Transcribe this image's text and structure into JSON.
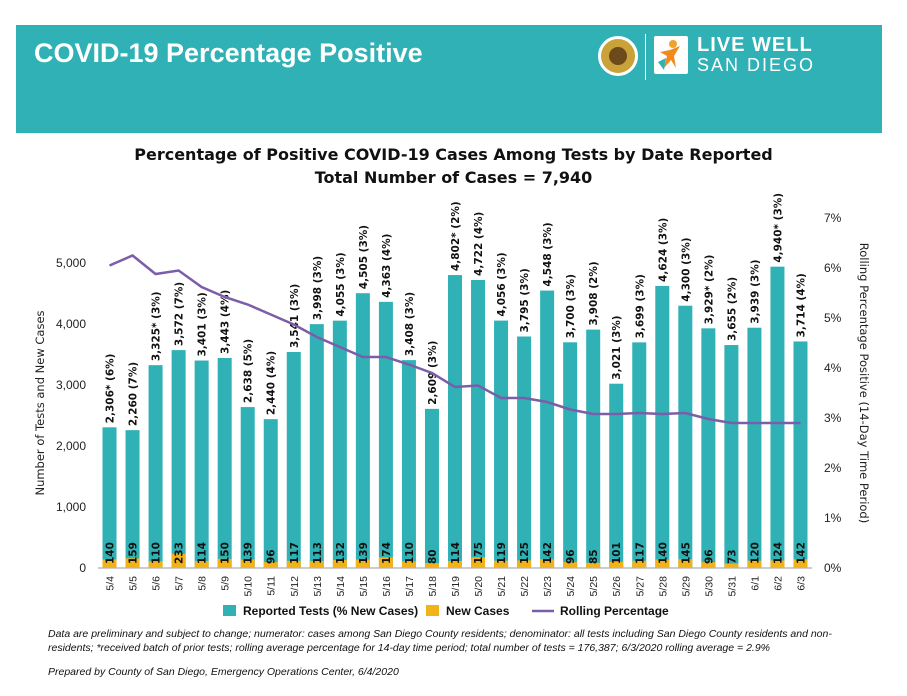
{
  "header": {
    "title": "COVID-19 Percentage Positive",
    "logo_line1": "LIVE WELL",
    "logo_line2": "SAN DIEGO",
    "brand_color": "#2fb1b5"
  },
  "chart_data": {
    "type": "bar",
    "title": "Percentage of Positive COVID-19 Cases Among Tests by Date Reported",
    "subtitle": "Total Number of Cases = 7,940",
    "xlabel": "",
    "ylabel": "Number of Tests and New Cases",
    "ylabel_right": "Rolling Percentage Positive (14-Day Time Period)",
    "ylim": [
      0,
      5000
    ],
    "ylim_right": [
      0,
      7
    ],
    "yticks": [
      "0",
      "1,000",
      "2,000",
      "3,000",
      "4,000",
      "5,000"
    ],
    "yticks_right": [
      "0%",
      "1%",
      "2%",
      "3%",
      "4%",
      "5%",
      "6%",
      "7%"
    ],
    "categories": [
      "5/4",
      "5/5",
      "5/6",
      "5/7",
      "5/8",
      "5/9",
      "5/10",
      "5/11",
      "5/12",
      "5/13",
      "5/14",
      "5/15",
      "5/16",
      "5/17",
      "5/18",
      "5/19",
      "5/20",
      "5/21",
      "5/22",
      "5/23",
      "5/24",
      "5/25",
      "5/26",
      "5/27",
      "5/28",
      "5/29",
      "5/30",
      "5/31",
      "6/1",
      "6/2",
      "6/3"
    ],
    "series": [
      {
        "name": "Reported Tests (% New Cases)",
        "color": "#2fb1b5",
        "values": [
          2306,
          2260,
          3325,
          3572,
          3401,
          3443,
          2638,
          2440,
          3541,
          3998,
          4055,
          4505,
          4363,
          3408,
          2609,
          4802,
          4722,
          4056,
          3795,
          4548,
          3700,
          3908,
          3021,
          3699,
          4624,
          4300,
          3929,
          3655,
          3939,
          4940,
          3714
        ],
        "labels": [
          "2,306* (6%)",
          "2,260 (7%)",
          "3,325* (3%)",
          "3,572 (7%)",
          "3,401 (3%)",
          "3,443 (4%)",
          "2,638 (5%)",
          "2,440 (4%)",
          "3,541 (3%)",
          "3,998 (3%)",
          "4,055 (3%)",
          "4,505 (3%)",
          "4,363 (4%)",
          "3,408 (3%)",
          "2,609 (3%)",
          "4,802* (2%)",
          "4,722 (4%)",
          "4,056 (3%)",
          "3,795 (3%)",
          "4,548 (3%)",
          "3,700 (3%)",
          "3,908 (2%)",
          "3,021 (3%)",
          "3,699 (3%)",
          "4,624 (3%)",
          "4,300 (3%)",
          "3,929* (2%)",
          "3,655 (2%)",
          "3,939 (3%)",
          "4,940* (3%)",
          "3,714 (4%)"
        ]
      },
      {
        "name": "New Cases",
        "color": "#f2b21a",
        "values": [
          140,
          159,
          110,
          233,
          114,
          150,
          139,
          96,
          117,
          113,
          132,
          139,
          174,
          110,
          80,
          114,
          175,
          119,
          125,
          142,
          96,
          85,
          101,
          117,
          140,
          145,
          96,
          73,
          120,
          124,
          142
        ]
      },
      {
        "name": "Rolling Percentage",
        "color": "#7b5ea7",
        "axis": "right",
        "values": [
          6.05,
          6.25,
          5.88,
          5.95,
          5.62,
          5.42,
          5.27,
          5.07,
          4.87,
          4.62,
          4.42,
          4.22,
          4.22,
          4.07,
          3.9,
          3.62,
          3.65,
          3.4,
          3.4,
          3.32,
          3.17,
          3.08,
          3.08,
          3.1,
          3.08,
          3.1,
          2.98,
          2.9,
          2.9,
          2.9,
          2.9
        ]
      }
    ],
    "legend": "bottom",
    "grid": false
  },
  "footnotes": {
    "note1": "Data are preliminary and subject to change; numerator: cases among San Diego County residents; denominator: all tests including San Diego County residents and non-residents; *received batch of prior tests; rolling average percentage for 14-day time period; total number of tests = 176,387; 6/3/2020 rolling average = 2.9%",
    "note2": "Prepared by County of San Diego, Emergency Operations Center, 6/4/2020"
  }
}
